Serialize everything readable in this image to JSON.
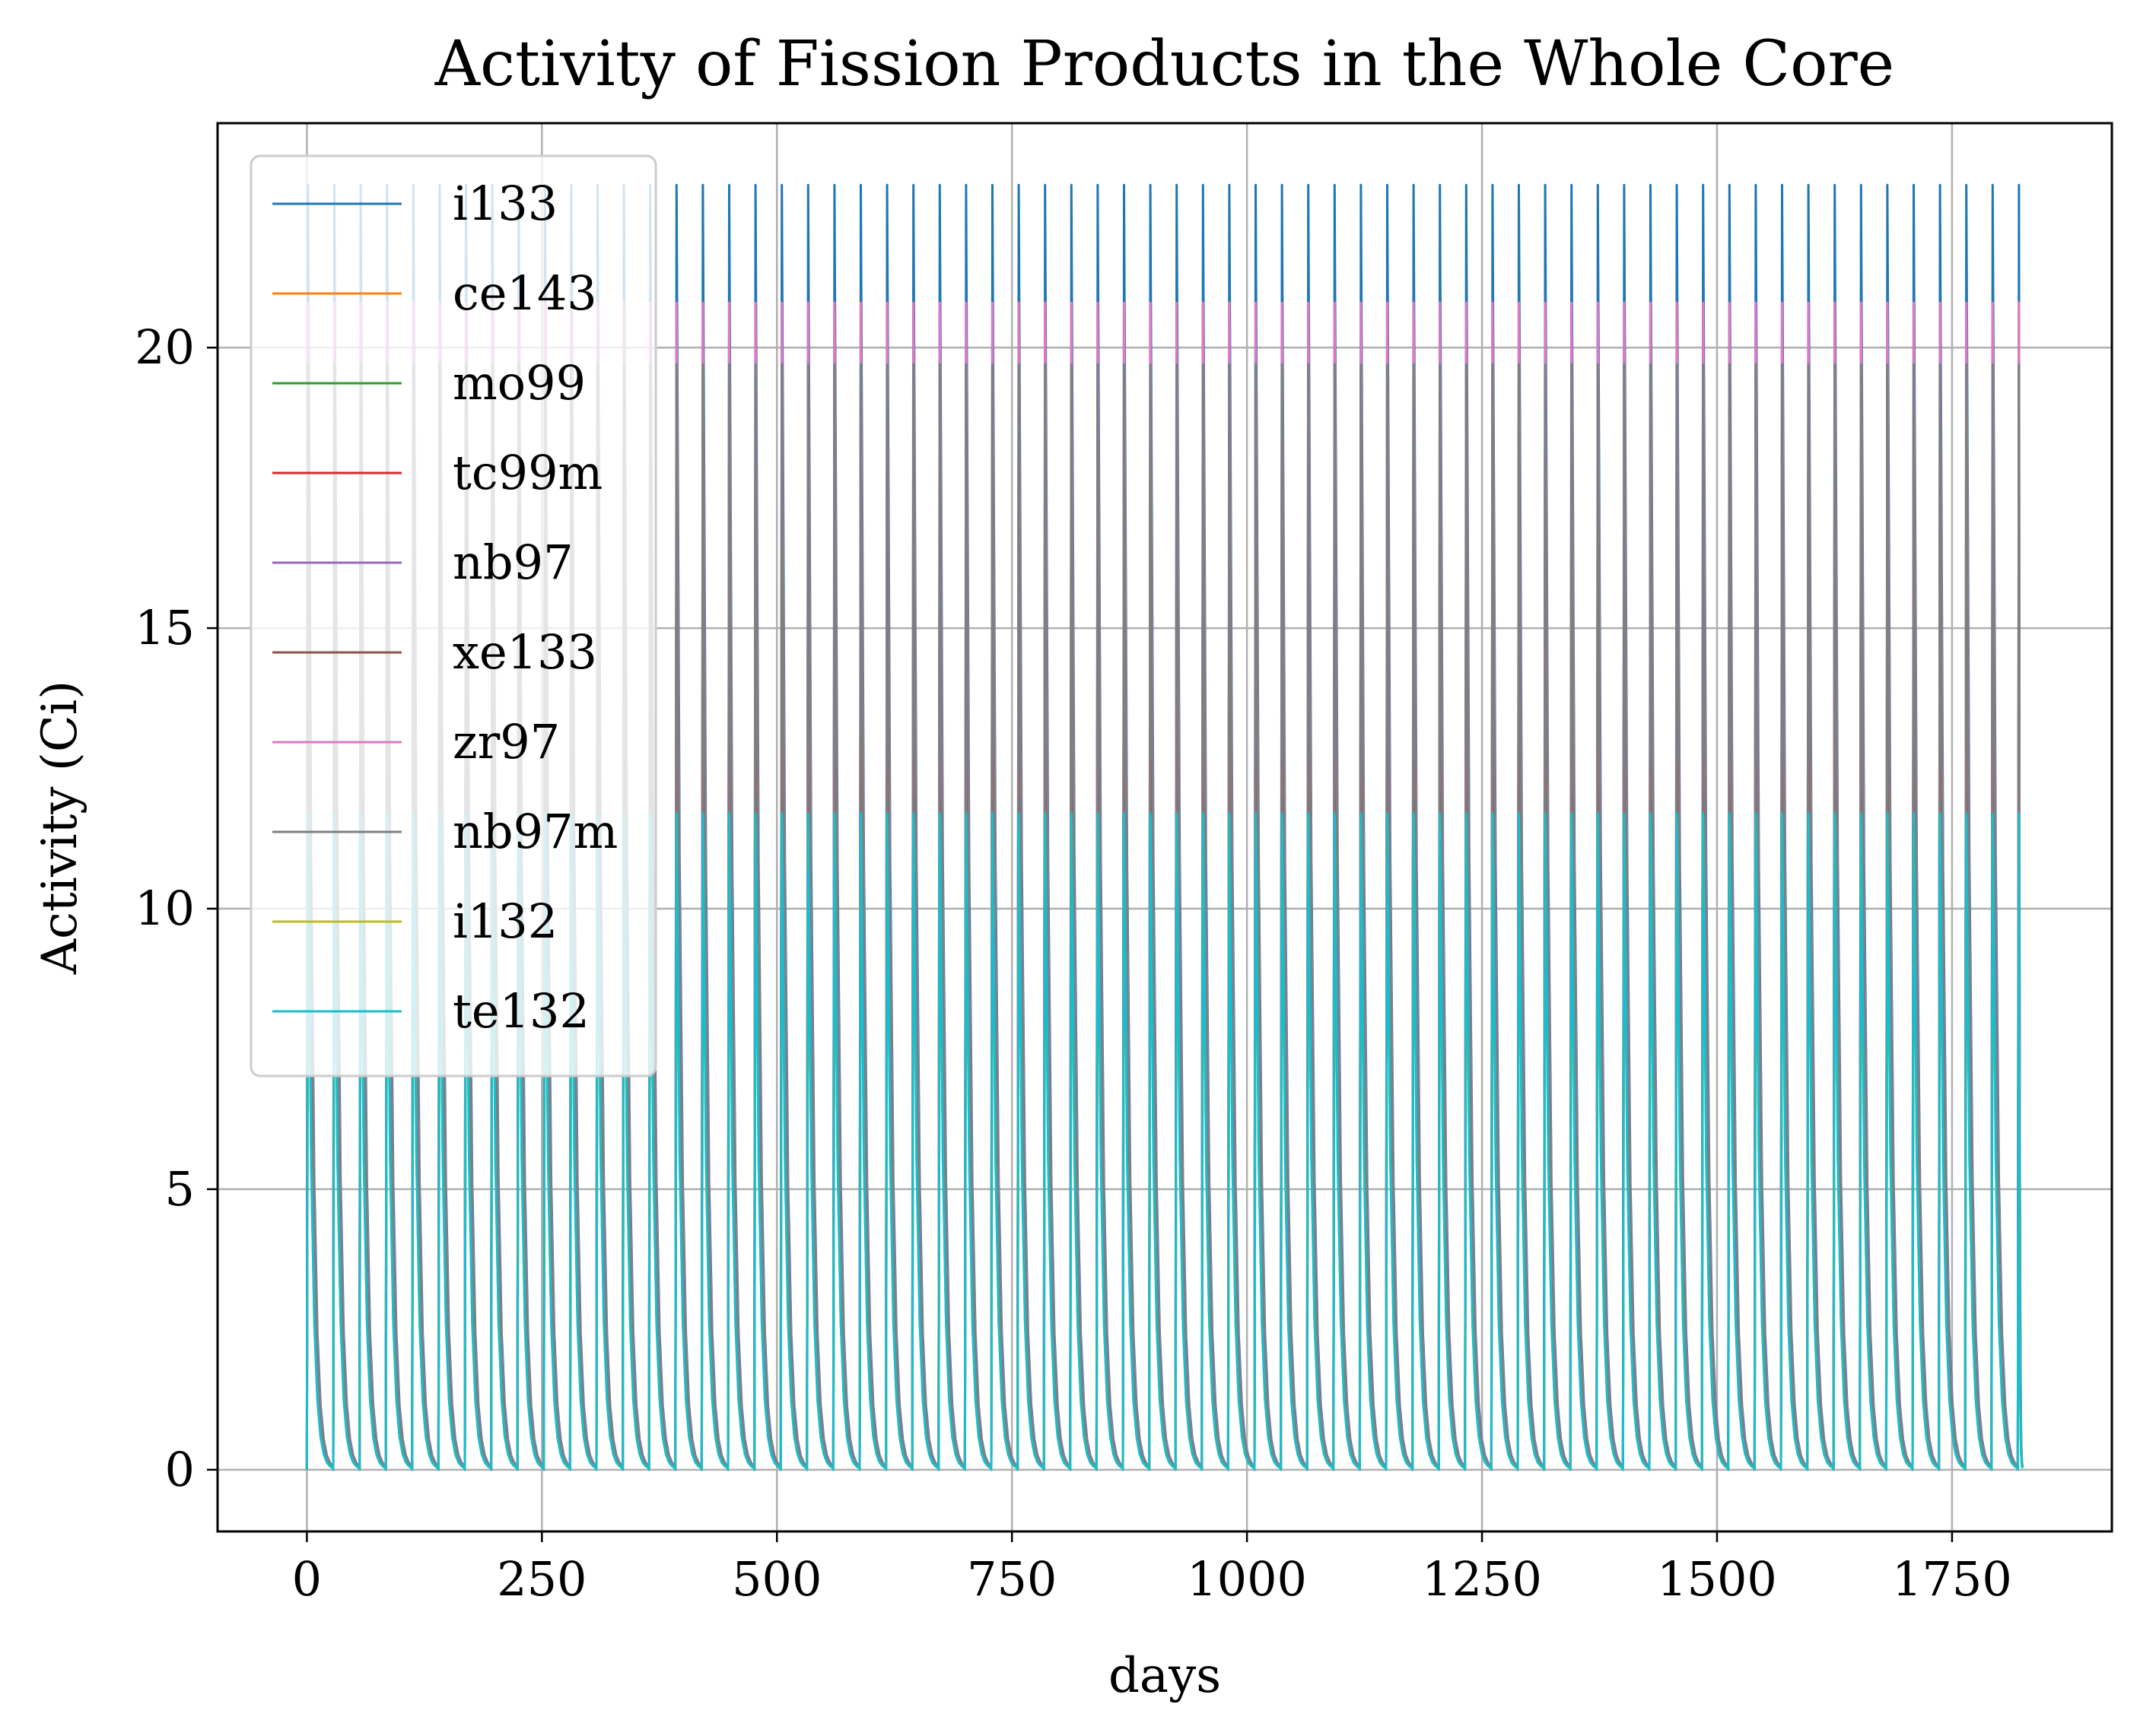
{
  "chart_data": {
    "type": "line",
    "title": "Activity of Fission Products in the Whole Core",
    "xlabel": "days",
    "ylabel": "Activity (Ci)",
    "xlim": [
      -95,
      1920
    ],
    "ylim": [
      -1.1,
      24.0
    ],
    "xticks": [
      0,
      250,
      500,
      750,
      1000,
      1250,
      1500,
      1750
    ],
    "yticks": [
      0,
      5,
      10,
      15,
      20
    ],
    "grid": true,
    "legend_position": "upper left",
    "cycle": {
      "period_days": 28,
      "start_day": 0,
      "end_day": 1825
    },
    "series": [
      {
        "name": "i133",
        "color": "#1f77b4",
        "peak": 22.9,
        "trough": 0.0
      },
      {
        "name": "ce143",
        "color": "#ff7f0e",
        "peak": 15.5,
        "trough": 0.0
      },
      {
        "name": "mo99",
        "color": "#2ca02c",
        "peak": 19.7,
        "trough": 0.0
      },
      {
        "name": "tc99m",
        "color": "#d62728",
        "peak": 18.4,
        "trough": 0.0
      },
      {
        "name": "nb97",
        "color": "#9467bd",
        "peak": 19.5,
        "trough": 0.0
      },
      {
        "name": "xe133",
        "color": "#8c564b",
        "peak": 12.0,
        "trough": 0.0
      },
      {
        "name": "zr97",
        "color": "#e377c2",
        "peak": 20.8,
        "trough": 0.0
      },
      {
        "name": "nb97m",
        "color": "#7f7f7f",
        "peak": 19.7,
        "trough": 0.0
      },
      {
        "name": "i132",
        "color": "#bcbd22",
        "peak": 11.6,
        "trough": 0.0
      },
      {
        "name": "te132",
        "color": "#17becf",
        "peak": 11.7,
        "trough": 0.0
      }
    ]
  }
}
